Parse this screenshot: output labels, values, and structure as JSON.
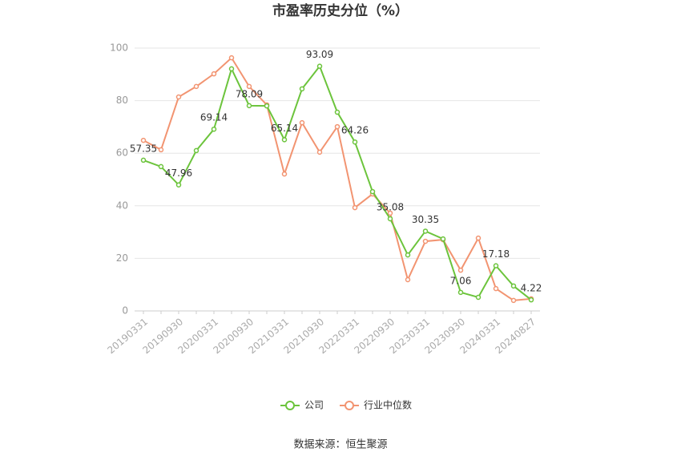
{
  "chart_data": {
    "type": "line",
    "title": "市盈率历史分位（%）",
    "categories": [
      "20190331",
      null,
      "20190930",
      null,
      "20200331",
      null,
      "20200930",
      null,
      "20210331",
      null,
      "20210930",
      null,
      "20220331",
      null,
      "20220930",
      null,
      "20230331",
      null,
      "20230930",
      null,
      "20240331",
      null,
      "20240827"
    ],
    "series": [
      {
        "name": "公司",
        "color": "#6cc43c",
        "values": [
          57.35,
          54.9,
          47.96,
          61.0,
          69.14,
          92.1,
          78.09,
          78.0,
          65.14,
          84.5,
          93.09,
          75.6,
          64.26,
          45.4,
          35.08,
          21.3,
          30.35,
          27.4,
          7.06,
          5.2,
          17.18,
          9.5,
          4.22
        ],
        "value_labels": [
          "57.35",
          null,
          "47.96",
          null,
          "69.14",
          null,
          "78.09",
          null,
          "65.14",
          null,
          "93.09",
          null,
          "64.26",
          null,
          "35.08",
          null,
          "30.35",
          null,
          "7.06",
          null,
          "17.18",
          null,
          "4.22"
        ]
      },
      {
        "name": "行业中位数",
        "color": "#f29471",
        "values": [
          64.9,
          61.3,
          81.4,
          85.4,
          90.2,
          96.3,
          85.4,
          78.4,
          52.1,
          71.6,
          60.4,
          70.1,
          39.3,
          44.5,
          37.2,
          11.9,
          26.5,
          27.1,
          15.5,
          27.7,
          8.5,
          4.0,
          4.6
        ]
      }
    ],
    "ylim": [
      0,
      100
    ],
    "yticks": [
      0,
      20,
      40,
      60,
      80,
      100
    ],
    "grid": true,
    "source": "数据来源：恒生聚源"
  }
}
